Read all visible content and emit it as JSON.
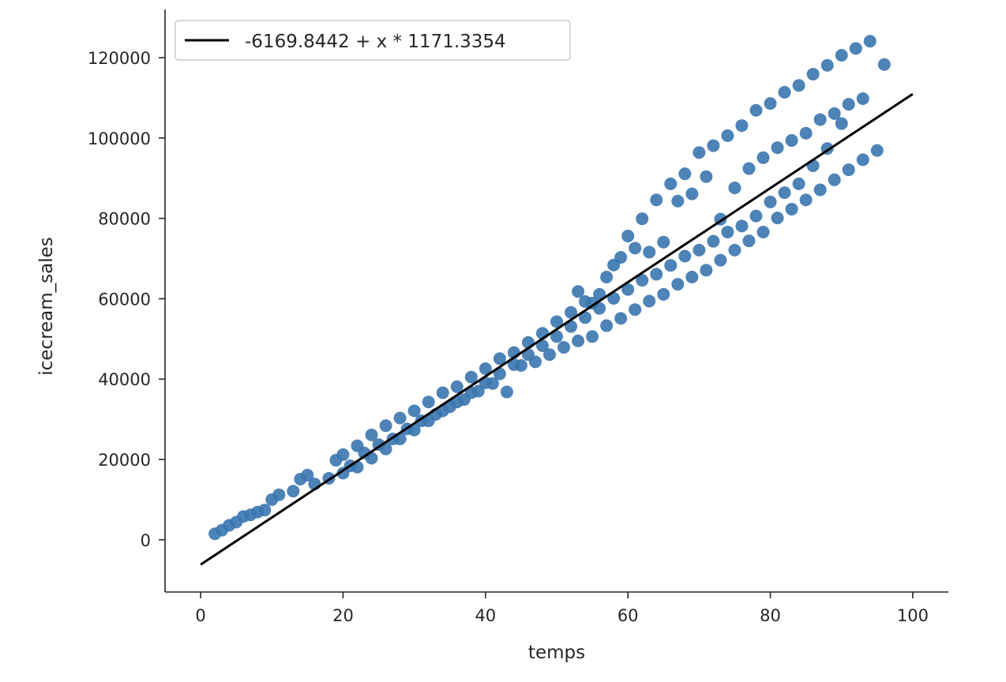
{
  "chart_data": {
    "type": "scatter",
    "title": "",
    "xlabel": "temps",
    "ylabel": "icecream_sales",
    "xlim": [
      -5,
      105
    ],
    "ylim": [
      -13000,
      132000
    ],
    "x_ticks": [
      0,
      20,
      40,
      60,
      80,
      100
    ],
    "x_tick_labels": [
      "0",
      "20",
      "40",
      "60",
      "80",
      "100"
    ],
    "y_ticks": [
      0,
      20000,
      40000,
      60000,
      80000,
      100000,
      120000
    ],
    "y_tick_labels": [
      "0",
      "20000",
      "40000",
      "60000",
      "80000",
      "100000",
      "120000"
    ],
    "grid": false,
    "legend_position": "top-left",
    "point_color": "#3a75af",
    "line_color": "#000000",
    "regression": {
      "label": "-6169.8442 + x * 1171.3354",
      "intercept": -6169.8442,
      "slope": 1171.3354,
      "x_range": [
        0,
        100
      ]
    },
    "points": [
      [
        2,
        1500
      ],
      [
        3,
        2400
      ],
      [
        4,
        3600
      ],
      [
        5,
        4400
      ],
      [
        6,
        5800
      ],
      [
        7,
        6200
      ],
      [
        8,
        6900
      ],
      [
        9,
        7400
      ],
      [
        10,
        10000
      ],
      [
        11,
        11200
      ],
      [
        13,
        12100
      ],
      [
        14,
        15100
      ],
      [
        15,
        16100
      ],
      [
        16,
        13900
      ],
      [
        18,
        15300
      ],
      [
        19,
        19800
      ],
      [
        20,
        21200
      ],
      [
        21,
        18400
      ],
      [
        22,
        23400
      ],
      [
        23,
        21600
      ],
      [
        24,
        26100
      ],
      [
        25,
        23700
      ],
      [
        26,
        28400
      ],
      [
        27,
        25100
      ],
      [
        28,
        30300
      ],
      [
        29,
        27600
      ],
      [
        30,
        32100
      ],
      [
        31,
        29600
      ],
      [
        32,
        34300
      ],
      [
        33,
        31200
      ],
      [
        34,
        36600
      ],
      [
        35,
        33100
      ],
      [
        36,
        38100
      ],
      [
        37,
        34900
      ],
      [
        38,
        40500
      ],
      [
        39,
        37000
      ],
      [
        40,
        42600
      ],
      [
        41,
        38900
      ],
      [
        42,
        45100
      ],
      [
        43,
        36800
      ],
      [
        44,
        46600
      ],
      [
        45,
        43400
      ],
      [
        46,
        49100
      ],
      [
        47,
        44300
      ],
      [
        48,
        51400
      ],
      [
        49,
        46100
      ],
      [
        50,
        54300
      ],
      [
        51,
        47900
      ],
      [
        52,
        56600
      ],
      [
        53,
        49500
      ],
      [
        54,
        59300
      ],
      [
        55,
        50600
      ],
      [
        56,
        61100
      ],
      [
        57,
        53300
      ],
      [
        58,
        68400
      ],
      [
        59,
        55100
      ],
      [
        60,
        75600
      ],
      [
        61,
        57300
      ],
      [
        62,
        79900
      ],
      [
        63,
        59400
      ],
      [
        64,
        84600
      ],
      [
        65,
        61100
      ],
      [
        66,
        88600
      ],
      [
        67,
        63600
      ],
      [
        68,
        91100
      ],
      [
        69,
        65400
      ],
      [
        70,
        96400
      ],
      [
        71,
        67100
      ],
      [
        72,
        98100
      ],
      [
        73,
        69600
      ],
      [
        74,
        100600
      ],
      [
        75,
        72100
      ],
      [
        76,
        103100
      ],
      [
        77,
        74400
      ],
      [
        78,
        106900
      ],
      [
        79,
        76600
      ],
      [
        80,
        108600
      ],
      [
        81,
        80100
      ],
      [
        82,
        111400
      ],
      [
        83,
        82300
      ],
      [
        84,
        113100
      ],
      [
        85,
        84600
      ],
      [
        86,
        115900
      ],
      [
        87,
        87100
      ],
      [
        88,
        118100
      ],
      [
        89,
        89600
      ],
      [
        90,
        120600
      ],
      [
        91,
        92100
      ],
      [
        92,
        122300
      ],
      [
        93,
        94600
      ],
      [
        94,
        124100
      ],
      [
        95,
        96900
      ],
      [
        96,
        118300
      ],
      [
        93,
        109800
      ],
      [
        90,
        103600
      ],
      [
        88,
        97400
      ],
      [
        86,
        93100
      ],
      [
        84,
        88600
      ],
      [
        82,
        86400
      ],
      [
        80,
        84100
      ],
      [
        78,
        80600
      ],
      [
        76,
        78100
      ],
      [
        74,
        76600
      ],
      [
        72,
        74300
      ],
      [
        70,
        72100
      ],
      [
        68,
        70600
      ],
      [
        66,
        68300
      ],
      [
        64,
        66100
      ],
      [
        62,
        64600
      ],
      [
        60,
        62300
      ],
      [
        58,
        60100
      ],
      [
        56,
        57600
      ],
      [
        54,
        55300
      ],
      [
        52,
        53100
      ],
      [
        50,
        50600
      ],
      [
        48,
        48300
      ],
      [
        46,
        46100
      ],
      [
        44,
        43600
      ],
      [
        42,
        41300
      ],
      [
        40,
        39100
      ],
      [
        38,
        36600
      ],
      [
        36,
        34300
      ],
      [
        34,
        32100
      ],
      [
        32,
        29600
      ],
      [
        30,
        27300
      ],
      [
        28,
        25100
      ],
      [
        26,
        22600
      ],
      [
        24,
        20300
      ],
      [
        22,
        18100
      ],
      [
        20,
        16600
      ],
      [
        67,
        84300
      ],
      [
        69,
        86100
      ],
      [
        71,
        90400
      ],
      [
        73,
        79800
      ],
      [
        75,
        87600
      ],
      [
        77,
        92400
      ],
      [
        79,
        95100
      ],
      [
        81,
        97600
      ],
      [
        83,
        99400
      ],
      [
        85,
        101200
      ],
      [
        87,
        104600
      ],
      [
        89,
        106100
      ],
      [
        91,
        108400
      ],
      [
        63,
        71600
      ],
      [
        65,
        74100
      ],
      [
        57,
        65400
      ],
      [
        59,
        70300
      ],
      [
        61,
        72600
      ],
      [
        55,
        58900
      ],
      [
        53,
        61800
      ]
    ]
  }
}
